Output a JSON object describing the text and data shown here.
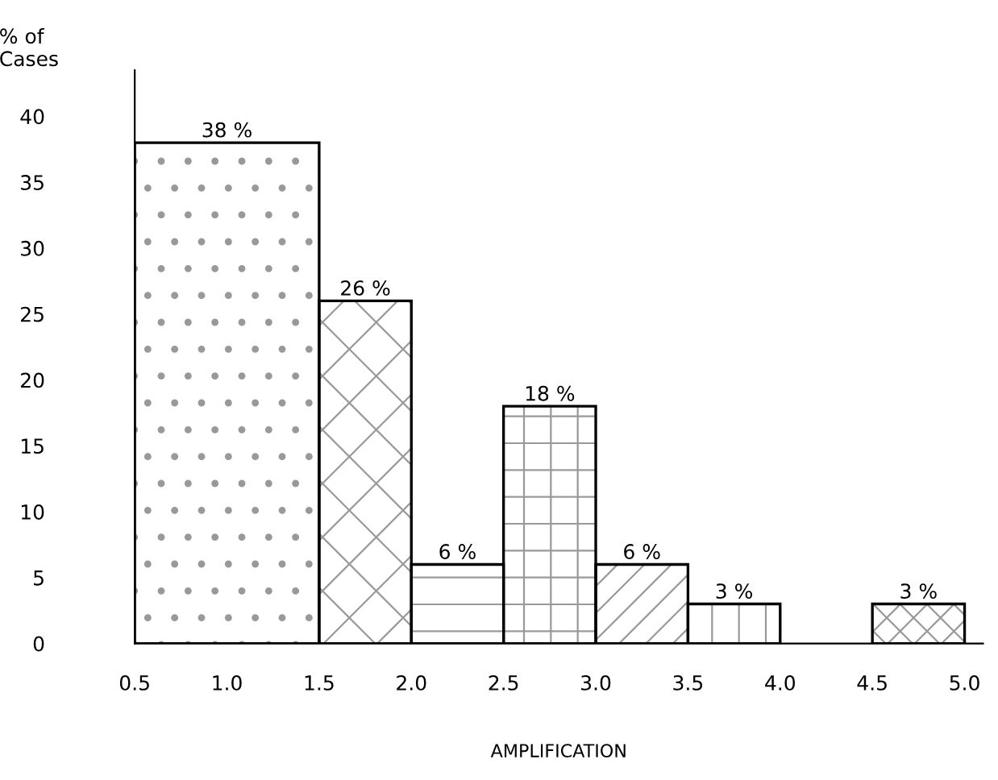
{
  "chart_data": {
    "type": "histogram",
    "ylabel": "% of\nCases",
    "xlabel": "AMPLIFICATION",
    "bins": [
      0.5,
      1.5,
      2.0,
      2.5,
      3.0,
      3.5,
      4.0,
      4.5,
      5.0
    ],
    "values": [
      38,
      26,
      6,
      18,
      6,
      3,
      0,
      3
    ],
    "value_labels": [
      "38 %",
      "26 %",
      "6 %",
      "18 %",
      "6 %",
      "3 %",
      null,
      "3 %"
    ],
    "color": "#ffffff",
    "xlim": [
      0.5,
      5.1
    ],
    "xticks": [
      0.5,
      {
        "value": 1,
        "label": "1.0"
      },
      1.5,
      {
        "value": 2,
        "label": "2.0"
      },
      2.5,
      {
        "value": 3,
        "label": "3.0"
      },
      3.5,
      {
        "value": 4,
        "label": "4.0"
      },
      4.5,
      {
        "value": 5,
        "label": "5.0"
      }
    ],
    "ylim": [
      0,
      43.5
    ],
    "yticks": [
      0,
      5,
      10,
      15,
      20,
      25,
      30,
      35,
      40
    ],
    "grid": false,
    "legend": false
  }
}
